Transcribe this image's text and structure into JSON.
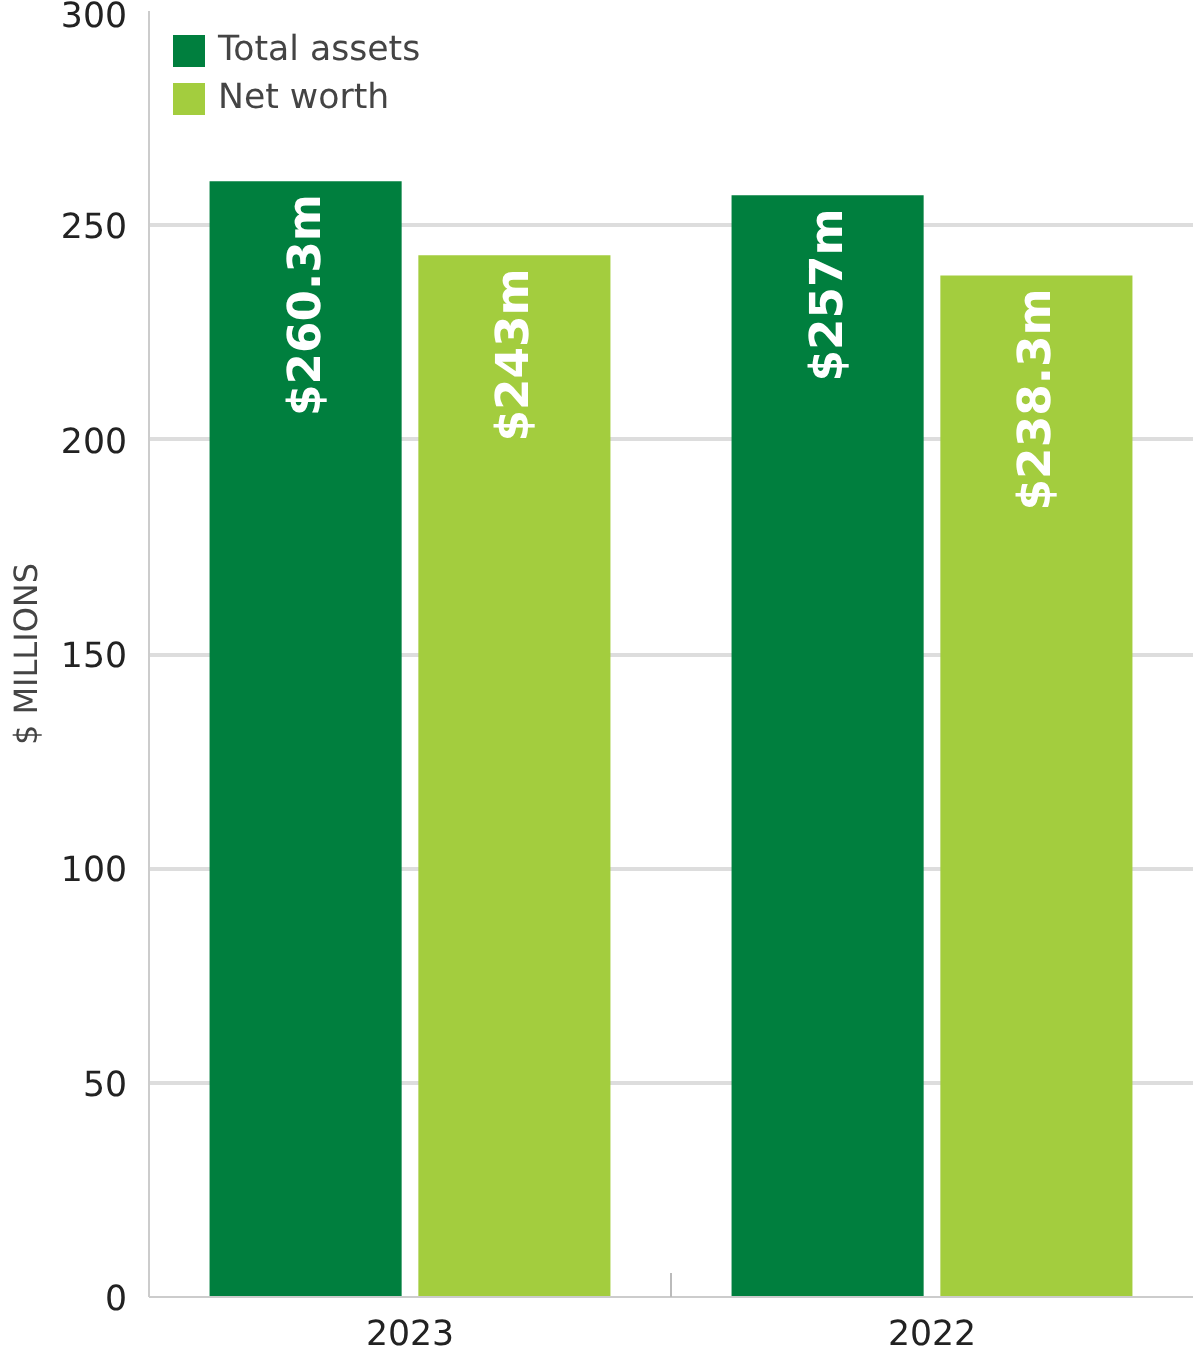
{
  "chart_data": {
    "type": "bar",
    "ylabel": "$ MILLIONS",
    "categories": [
      "2023",
      "2022"
    ],
    "series": [
      {
        "name": "Total assets",
        "color": "#007f3e",
        "values": [
          260.3,
          257
        ],
        "value_labels": [
          "$260.3m",
          "$257m"
        ]
      },
      {
        "name": "Net worth",
        "color": "#a3cd3e",
        "values": [
          243,
          238.3
        ],
        "value_labels": [
          "$243m",
          "$238.3m"
        ]
      }
    ],
    "ylim": [
      0,
      300
    ],
    "yticks": [
      0,
      50,
      100,
      150,
      200,
      250,
      300
    ],
    "grid": "y",
    "legend": "top left"
  }
}
